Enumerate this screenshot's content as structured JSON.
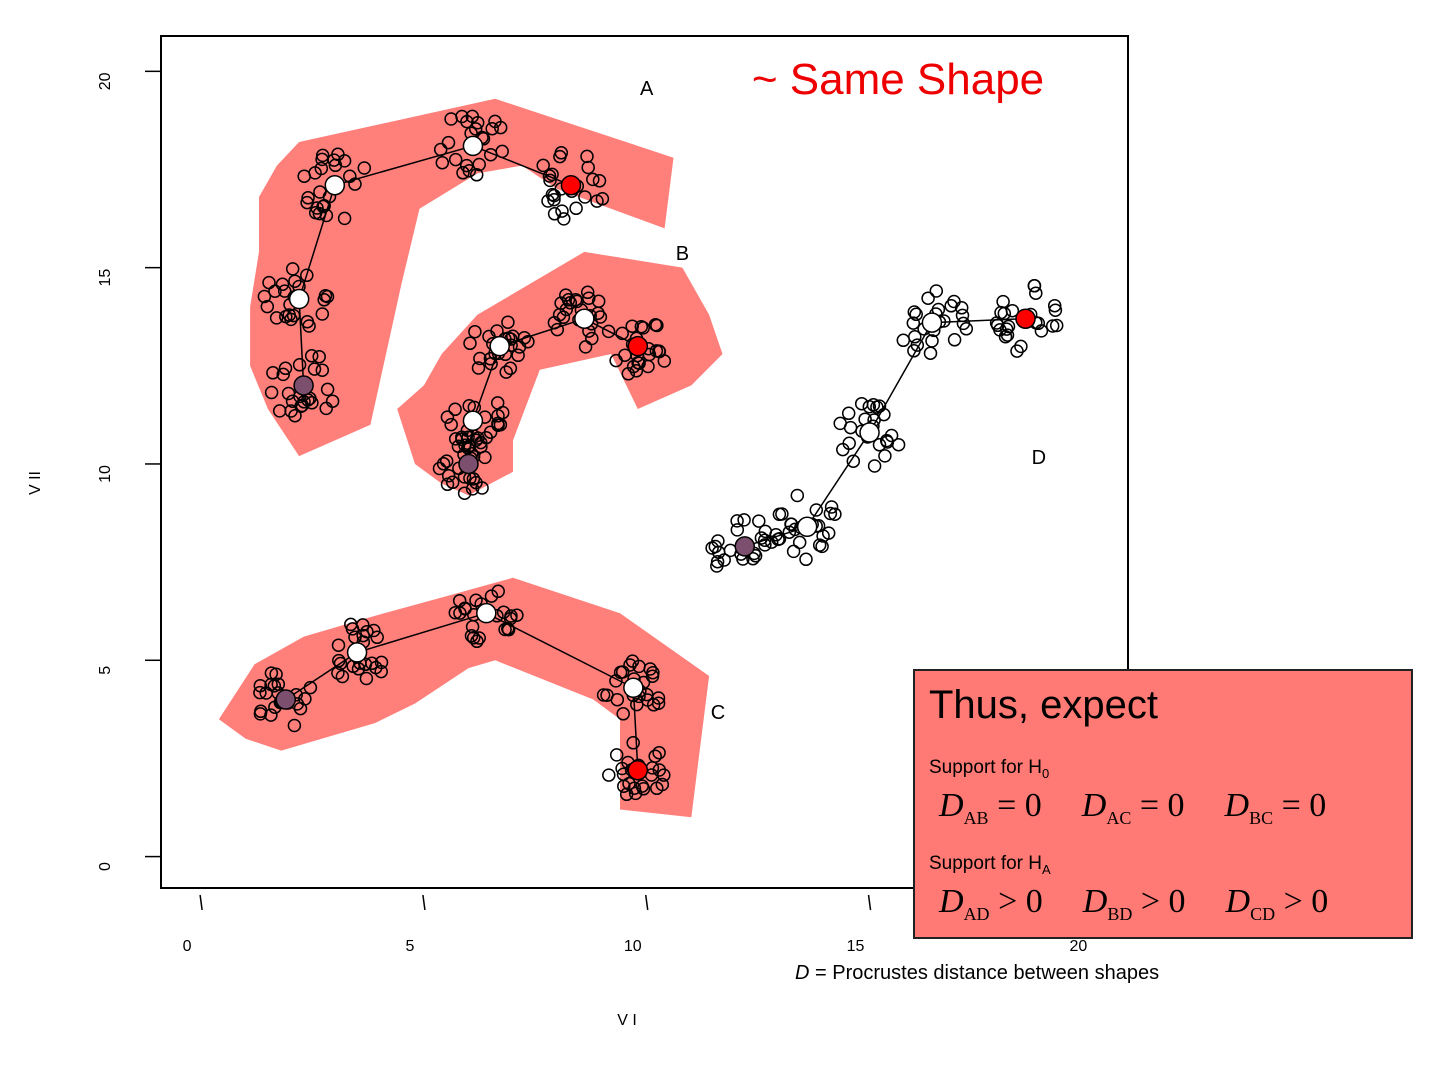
{
  "chart_data": {
    "type": "scatter",
    "xlabel": "V I",
    "ylabel": "V II",
    "xticks": [
      0,
      5,
      10,
      15,
      20
    ],
    "yticks": [
      0,
      5,
      10,
      15,
      20
    ],
    "xlim": [
      -0.9,
      20.8
    ],
    "ylim": [
      -0.8,
      20.9
    ],
    "title": "~ Same Shape",
    "colors": {
      "hull_fill": "#ff7f7a",
      "title_red": "#ee0000",
      "landmark_red": "#ff0000",
      "landmark_purple": "#7d4f6e",
      "landmark_white": "#ffffff"
    },
    "shapes": [
      {
        "name": "A",
        "label_pos": [
          10.0,
          19.4
        ],
        "hull": [
          [
            2.2,
            18.2
          ],
          [
            6.6,
            19.3
          ],
          [
            10.6,
            17.8
          ],
          [
            10.4,
            16.0
          ],
          [
            8.0,
            17.0
          ],
          [
            7.2,
            17.6
          ],
          [
            6.2,
            17.4
          ],
          [
            4.9,
            16.5
          ],
          [
            4.5,
            14.6
          ],
          [
            3.8,
            11.0
          ],
          [
            3.4,
            10.8
          ],
          [
            2.2,
            10.2
          ],
          [
            1.5,
            11.4
          ],
          [
            1.1,
            12.5
          ],
          [
            1.1,
            14.0
          ],
          [
            1.3,
            15.4
          ],
          [
            1.3,
            16.8
          ],
          [
            1.7,
            17.6
          ]
        ],
        "landmarks": [
          {
            "x": 2.3,
            "y": 12.0,
            "color": "purple"
          },
          {
            "x": 2.2,
            "y": 14.2,
            "color": "white"
          },
          {
            "x": 3.0,
            "y": 17.1,
            "color": "white"
          },
          {
            "x": 6.1,
            "y": 18.1,
            "color": "white"
          },
          {
            "x": 8.3,
            "y": 17.1,
            "color": "red"
          }
        ],
        "spread": 0.8
      },
      {
        "name": "B",
        "label_pos": [
          10.8,
          15.2
        ],
        "hull": [
          [
            5.4,
            12.8
          ],
          [
            6.2,
            13.8
          ],
          [
            8.6,
            15.4
          ],
          [
            10.8,
            15.0
          ],
          [
            11.4,
            13.8
          ],
          [
            11.7,
            12.8
          ],
          [
            11.0,
            12.0
          ],
          [
            9.8,
            11.4
          ],
          [
            9.2,
            12.8
          ],
          [
            7.6,
            12.4
          ],
          [
            7.0,
            10.6
          ],
          [
            7.0,
            9.8
          ],
          [
            6.0,
            9.2
          ],
          [
            5.4,
            9.5
          ],
          [
            4.8,
            10.0
          ],
          [
            4.4,
            11.4
          ],
          [
            5.0,
            12.0
          ]
        ],
        "landmarks": [
          {
            "x": 6.0,
            "y": 10.0,
            "color": "purple"
          },
          {
            "x": 6.1,
            "y": 11.1,
            "color": "white"
          },
          {
            "x": 6.7,
            "y": 13.0,
            "color": "white"
          },
          {
            "x": 8.6,
            "y": 13.7,
            "color": "white"
          },
          {
            "x": 9.8,
            "y": 13.0,
            "color": "red"
          }
        ],
        "spread": 0.7
      },
      {
        "name": "C",
        "label_pos": [
          11.6,
          3.5
        ],
        "hull": [
          [
            0.4,
            3.5
          ],
          [
            1.2,
            4.9
          ],
          [
            2.3,
            5.6
          ],
          [
            3.8,
            6.1
          ],
          [
            5.4,
            6.6
          ],
          [
            7.0,
            7.1
          ],
          [
            9.4,
            6.2
          ],
          [
            11.4,
            4.6
          ],
          [
            11.0,
            1.0
          ],
          [
            9.4,
            1.2
          ],
          [
            9.4,
            3.5
          ],
          [
            8.8,
            4.0
          ],
          [
            6.6,
            5.0
          ],
          [
            6.0,
            4.8
          ],
          [
            4.8,
            3.9
          ],
          [
            3.9,
            3.4
          ],
          [
            1.8,
            2.7
          ],
          [
            1.0,
            3.0
          ]
        ],
        "landmarks": [
          {
            "x": 1.9,
            "y": 4.0,
            "color": "purple"
          },
          {
            "x": 3.5,
            "y": 5.2,
            "color": "white"
          },
          {
            "x": 6.4,
            "y": 6.2,
            "color": "white"
          },
          {
            "x": 9.7,
            "y": 4.3,
            "color": "white"
          },
          {
            "x": 9.8,
            "y": 2.2,
            "color": "red"
          }
        ],
        "spread": 0.7
      },
      {
        "name": "D",
        "label_pos": [
          18.8,
          10.0
        ],
        "hull": [],
        "landmarks": [
          {
            "x": 12.2,
            "y": 7.9,
            "color": "purple"
          },
          {
            "x": 13.6,
            "y": 8.4,
            "color": "white"
          },
          {
            "x": 15.0,
            "y": 10.8,
            "color": "white"
          },
          {
            "x": 16.4,
            "y": 13.6,
            "color": "white"
          },
          {
            "x": 18.5,
            "y": 13.7,
            "color": "red"
          }
        ],
        "spread": 0.8
      }
    ]
  },
  "legend": {
    "heading": "Thus, expect",
    "h0_prefix": "Support for H",
    "h0_sub": "0",
    "h0_equations": [
      {
        "d": "D",
        "sub": "AB",
        "rel": "= 0"
      },
      {
        "d": "D",
        "sub": "AC",
        "rel": "= 0"
      },
      {
        "d": "D",
        "sub": "BC",
        "rel": "= 0"
      }
    ],
    "ha_prefix": "Support for H",
    "ha_sub": "A",
    "ha_equations": [
      {
        "d": "D",
        "sub": "AD",
        "rel": "> 0"
      },
      {
        "d": "D",
        "sub": "BD",
        "rel": "> 0"
      },
      {
        "d": "D",
        "sub": "CD",
        "rel": "> 0"
      }
    ]
  },
  "caption": {
    "var": "D",
    "rest": " = Procrustes distance between shapes"
  }
}
